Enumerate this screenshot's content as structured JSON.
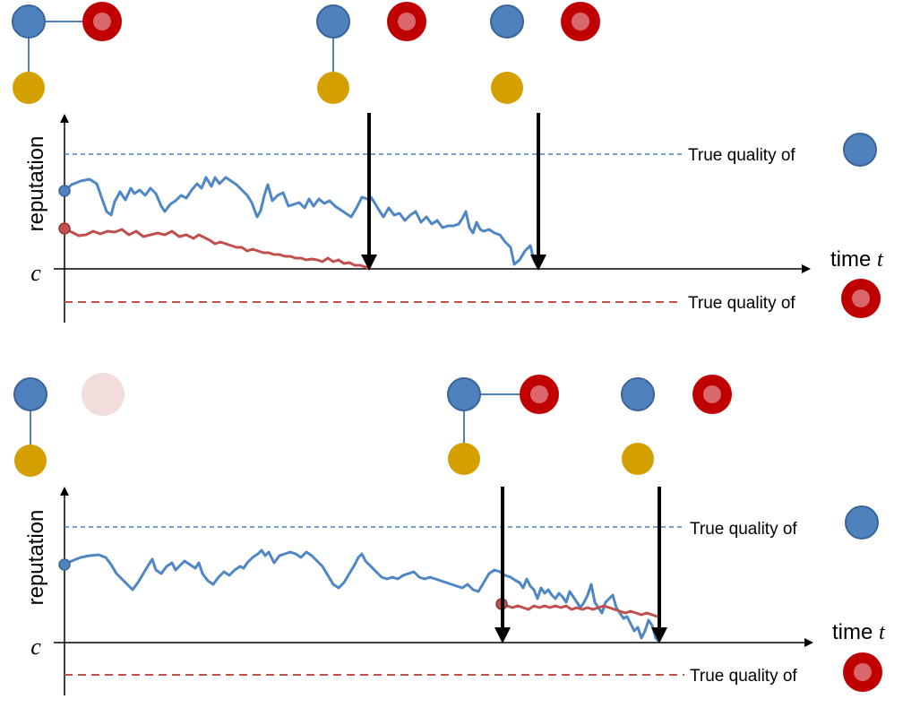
{
  "colors": {
    "blue": "#4F81BD",
    "blue_stroke": "#3A6498",
    "red": "#C00000",
    "red_inner": "#D9666A",
    "red_faded": "#F2DCDC",
    "gold": "#D4A000",
    "axis": "#000000",
    "blue_curve": "#4F86C6",
    "red_curve": "#C0504D"
  },
  "panels": [
    {
      "y_axis_label": "reputation",
      "x_axis_label": "time",
      "x_axis_var": "t",
      "c_label": "c",
      "true_quality_blue": "True quality of",
      "true_quality_red": "True quality of",
      "icons": [
        "blue-gold-red-linked",
        "blue-gold-linked-red-separate",
        "blue-red-gold-unlinked"
      ],
      "arrows": 2
    },
    {
      "y_axis_label": "reputation",
      "x_axis_label": "time",
      "x_axis_var": "t",
      "c_label": "c",
      "true_quality_blue": "True quality of",
      "true_quality_red": "True quality of",
      "icons": [
        "blue-gold-linked-red-faded",
        "blue-gold-red-linked",
        "blue-red-gold-unlinked"
      ],
      "arrows": 2
    }
  ]
}
